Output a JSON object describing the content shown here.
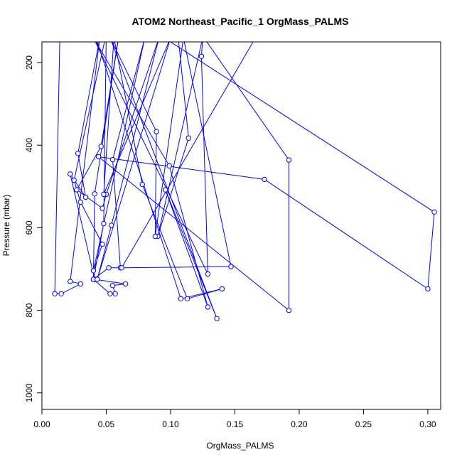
{
  "chart_data": {
    "type": "line",
    "title": "ATOM2 Northeast_Pacific_1 OrgMass_PALMS",
    "xlabel": "OrgMass_PALMS",
    "ylabel": "Pressure (mbar)",
    "xlim": [
      0,
      0.31
    ],
    "ylim": [
      1040,
      150
    ],
    "y_reversed": true,
    "x_ticks": [
      0.0,
      0.05,
      0.1,
      0.15,
      0.2,
      0.25,
      0.3
    ],
    "x_tick_labels": [
      "0.00",
      "0.05",
      "0.10",
      "0.15",
      "0.20",
      "0.25",
      "0.30"
    ],
    "y_ticks": [
      200,
      400,
      600,
      800,
      1000
    ],
    "y_tick_labels": [
      "200",
      "400",
      "600",
      "800",
      "1000"
    ],
    "grid": false,
    "legend": "none",
    "color": "#0000ff",
    "points": [
      [
        0.014,
        130
      ],
      [
        0.01,
        760
      ],
      [
        0.015,
        760
      ],
      [
        0.03,
        736
      ],
      [
        0.022,
        730
      ],
      [
        0.045,
        140
      ],
      [
        0.028,
        420
      ],
      [
        0.034,
        526
      ],
      [
        0.022,
        470
      ],
      [
        0.041,
        725
      ],
      [
        0.065,
        736
      ],
      [
        0.055,
        740
      ],
      [
        0.057,
        760
      ],
      [
        0.053,
        760
      ],
      [
        0.04,
        725
      ],
      [
        0.052,
        697
      ],
      [
        0.061,
        697
      ],
      [
        0.055,
        435
      ],
      [
        0.08,
        140
      ],
      [
        0.04,
        704
      ],
      [
        0.047,
        640
      ],
      [
        0.03,
        538
      ],
      [
        0.025,
        485
      ],
      [
        0.05,
        130
      ],
      [
        0.048,
        590
      ],
      [
        0.04,
        725
      ],
      [
        0.041,
        518
      ],
      [
        0.06,
        130
      ],
      [
        0.046,
        403
      ],
      [
        0.027,
        508
      ],
      [
        0.047,
        553
      ],
      [
        0.05,
        519
      ],
      [
        0.091,
        140
      ],
      [
        0.054,
        594
      ],
      [
        0.043,
        725
      ],
      [
        0.1,
        140
      ],
      [
        0.048,
        519
      ],
      [
        0.056,
        140
      ],
      [
        0.078,
        495
      ],
      [
        0.113,
        772
      ],
      [
        0.14,
        748
      ],
      [
        0.108,
        772
      ],
      [
        0.042,
        140
      ],
      [
        0.106,
        140
      ],
      [
        0.114,
        383
      ],
      [
        0.09,
        621
      ],
      [
        0.125,
        140
      ],
      [
        0.124,
        185
      ],
      [
        0.129,
        712
      ],
      [
        0.04,
        140
      ],
      [
        0.099,
        450
      ],
      [
        0.129,
        792
      ],
      [
        0.096,
        508
      ],
      [
        0.136,
        820
      ],
      [
        0.053,
        140
      ],
      [
        0.089,
        367
      ],
      [
        0.088,
        621
      ],
      [
        0.11,
        140
      ],
      [
        0.147,
        694
      ],
      [
        0.062,
        697
      ],
      [
        0.166,
        140
      ],
      [
        0.126,
        140
      ],
      [
        0.192,
        436
      ],
      [
        0.192,
        800
      ],
      [
        0.044,
        428
      ],
      [
        0.173,
        483
      ],
      [
        0.3,
        748
      ],
      [
        0.305,
        562
      ],
      [
        0.09,
        130
      ]
    ]
  }
}
